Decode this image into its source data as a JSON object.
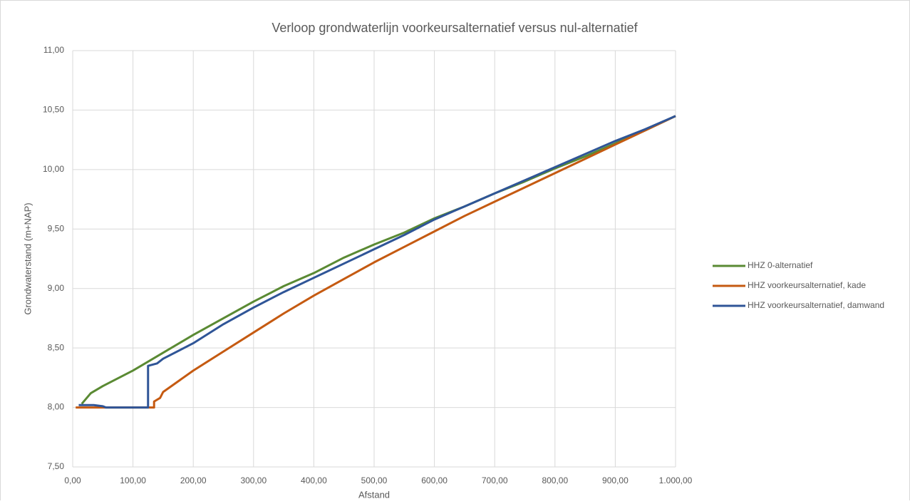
{
  "chart_data": {
    "type": "line",
    "title": "Verloop grondwaterlijn voorkeursalternatief versus nul-alternatief",
    "xlabel": "Afstand",
    "ylabel": "Grondwaterstand (m+NAP)",
    "xlim": [
      0,
      1000
    ],
    "ylim": [
      7.5,
      11
    ],
    "xticks": [
      {
        "value": 0,
        "label": "0,00"
      },
      {
        "value": 100,
        "label": "100,00"
      },
      {
        "value": 200,
        "label": "200,00"
      },
      {
        "value": 300,
        "label": "300,00"
      },
      {
        "value": 400,
        "label": "400,00"
      },
      {
        "value": 500,
        "label": "500,00"
      },
      {
        "value": 600,
        "label": "600,00"
      },
      {
        "value": 700,
        "label": "700,00"
      },
      {
        "value": 800,
        "label": "800,00"
      },
      {
        "value": 900,
        "label": "900,00"
      },
      {
        "value": 1000,
        "label": "1.000,00"
      }
    ],
    "yticks": [
      {
        "value": 7.5,
        "label": "7,50"
      },
      {
        "value": 8,
        "label": "8,00"
      },
      {
        "value": 8.5,
        "label": "8,50"
      },
      {
        "value": 9,
        "label": "9,00"
      },
      {
        "value": 9.5,
        "label": "9,50"
      },
      {
        "value": 10,
        "label": "10,00"
      },
      {
        "value": 10.5,
        "label": "10,50"
      },
      {
        "value": 11,
        "label": "11,00"
      }
    ],
    "grid": true,
    "legend": "right",
    "series": [
      {
        "name": "HHZ 0-alternatief",
        "color": "#5a8a33",
        "x": [
          15,
          30,
          50,
          100,
          150,
          200,
          250,
          300,
          350,
          400,
          450,
          500,
          550,
          600,
          650,
          700,
          750,
          800,
          850,
          900,
          950,
          1000
        ],
        "values": [
          8.03,
          8.12,
          8.18,
          8.31,
          8.46,
          8.61,
          8.75,
          8.89,
          9.02,
          9.13,
          9.26,
          9.37,
          9.47,
          9.59,
          9.69,
          9.8,
          9.9,
          10.01,
          10.11,
          10.22,
          10.33,
          10.45
        ]
      },
      {
        "name": "HHZ voorkeursalternatief, kade",
        "color": "#c55a11",
        "x": [
          5,
          135,
          135,
          145,
          150,
          200,
          250,
          300,
          350,
          400,
          450,
          500,
          550,
          600,
          650,
          700,
          750,
          800,
          850,
          900,
          950,
          1000
        ],
        "values": [
          8.0,
          8.0,
          8.05,
          8.08,
          8.13,
          8.31,
          8.47,
          8.63,
          8.79,
          8.94,
          9.08,
          9.22,
          9.35,
          9.48,
          9.61,
          9.73,
          9.85,
          9.97,
          10.09,
          10.21,
          10.33,
          10.45
        ]
      },
      {
        "name": "HHZ voorkeursalternatief, damwand",
        "color": "#2f5597",
        "x": [
          10,
          35,
          50,
          55,
          125,
          125,
          140,
          150,
          200,
          250,
          300,
          350,
          400,
          450,
          500,
          550,
          600,
          650,
          700,
          750,
          800,
          850,
          900,
          950,
          1000
        ],
        "values": [
          8.02,
          8.02,
          8.01,
          8.0,
          8.0,
          8.35,
          8.37,
          8.41,
          8.54,
          8.7,
          8.84,
          8.97,
          9.09,
          9.21,
          9.33,
          9.45,
          9.58,
          9.69,
          9.8,
          9.91,
          10.02,
          10.13,
          10.24,
          10.34,
          10.45
        ]
      }
    ]
  }
}
